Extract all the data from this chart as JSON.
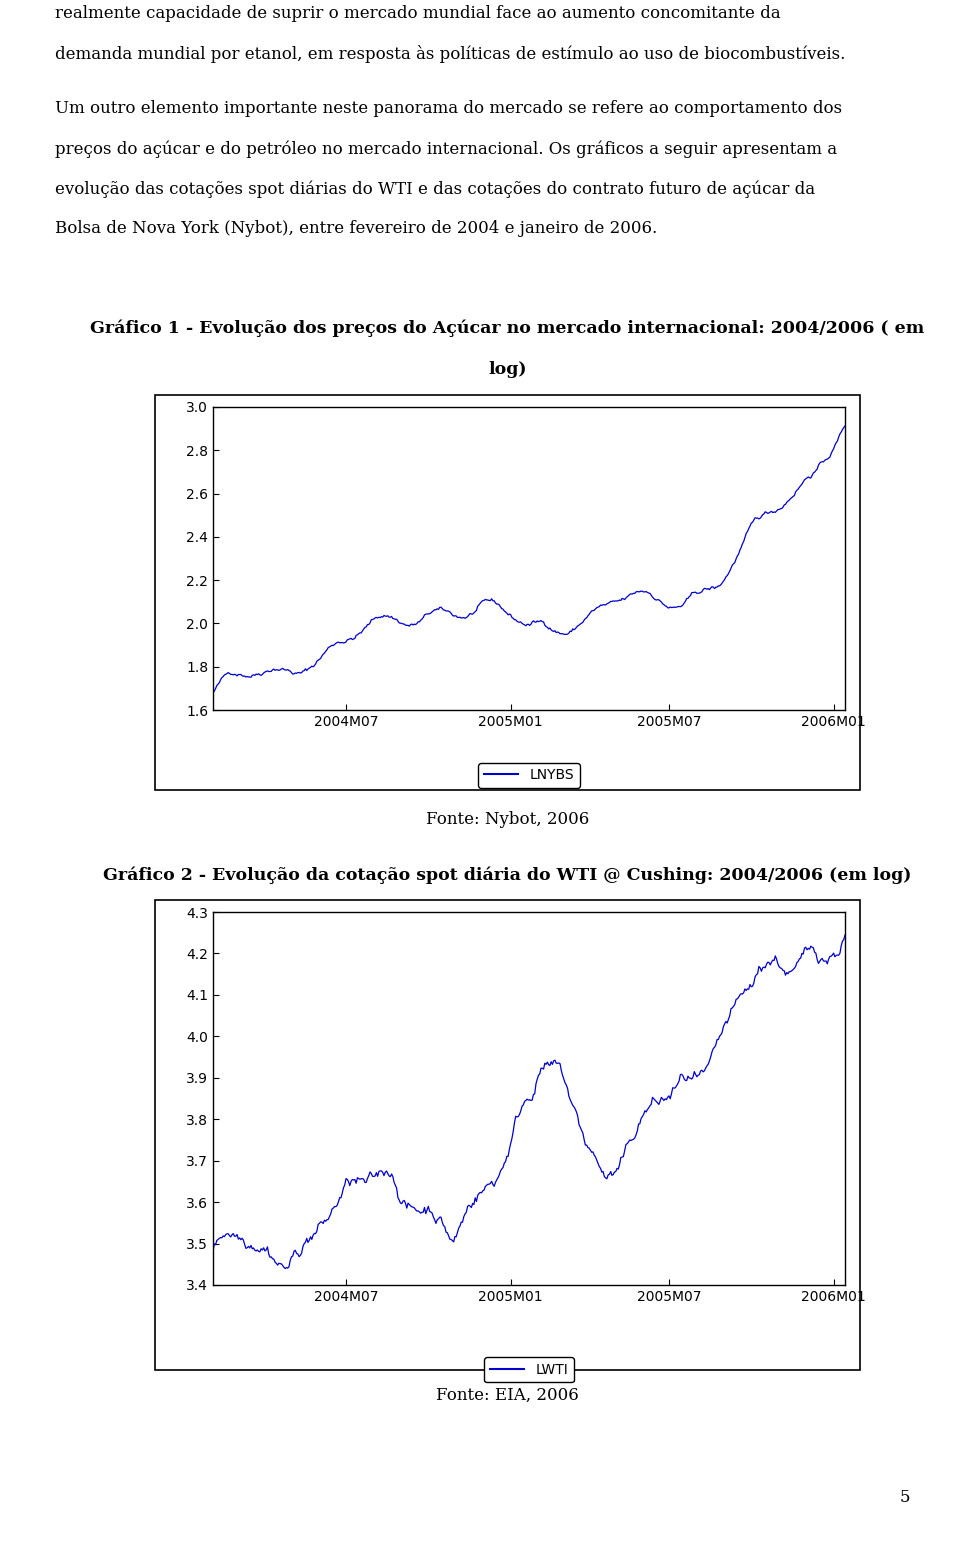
{
  "title1_line1": "Gráfico 1 - Evolução dos preços do Açúcar no mercado internacional: 2004/2006 ( em",
  "title1_line2": "log)",
  "title2": "Gráfico 2 - Evolução da cotação spot diária do WTI @ Cushing: 2004/2006 (em log)",
  "fonte1": "Fonte: Nybot, 2006",
  "fonte2": "Fonte: EIA, 2006",
  "legend1": "LNYBS",
  "legend2": "LWTI",
  "chart1_ylim": [
    1.6,
    3.0
  ],
  "chart1_yticks": [
    1.6,
    1.8,
    2.0,
    2.2,
    2.4,
    2.6,
    2.8,
    3.0
  ],
  "chart2_ylim": [
    3.4,
    4.3
  ],
  "chart2_yticks": [
    3.4,
    3.5,
    3.6,
    3.7,
    3.8,
    3.9,
    4.0,
    4.1,
    4.2,
    4.3
  ],
  "xtick_labels": [
    "2004M07",
    "2005M01",
    "2005M07",
    "2006M01"
  ],
  "line_color": "#0000CD",
  "background_color": "#ffffff",
  "text_color": "#000000",
  "page_number": "5",
  "intro_lines": [
    "realmente capacidade de suprir o mercado mundial face ao aumento concomitante da",
    "demanda mundial por etanol, em resposta às políticas de estímulo ao uso de biocombustíveis.",
    "",
    "Um outro elemento importante neste panorama do mercado se refere ao comportamento dos",
    "preços do açúcar e do petróleo no mercado internacional. Os gráficos a seguir apresentam a",
    "evolução das cotações spot diárias do WTI e das cotações do contrato futuro de açúcar da",
    "Bolsa de Nova York (Nybot), entre fevereiro de 2004 e janeiro de 2006."
  ]
}
